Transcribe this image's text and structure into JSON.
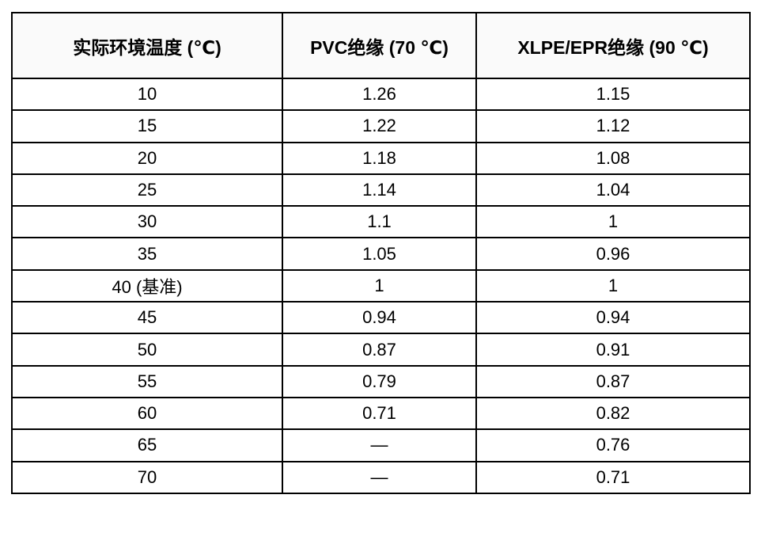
{
  "table": {
    "name": "ambient-temperature-correction-factors",
    "columns": [
      {
        "label": "实际环境温度 (℃)"
      },
      {
        "label": "PVC绝缘 (70 ℃)"
      },
      {
        "label": "XLPE/EPR绝缘 (90 ℃)"
      }
    ],
    "rows": [
      {
        "temperature": "10",
        "pvc": "1.26",
        "xlpe": "1.15"
      },
      {
        "temperature": "15",
        "pvc": "1.22",
        "xlpe": "1.12"
      },
      {
        "temperature": "20",
        "pvc": "1.18",
        "xlpe": "1.08"
      },
      {
        "temperature": "25",
        "pvc": "1.14",
        "xlpe": "1.04"
      },
      {
        "temperature": "30",
        "pvc": "1.1",
        "xlpe": "1"
      },
      {
        "temperature": "35",
        "pvc": "1.05",
        "xlpe": "0.96"
      },
      {
        "temperature": "40 (基准)",
        "pvc": "1",
        "xlpe": "1"
      },
      {
        "temperature": "45",
        "pvc": "0.94",
        "xlpe": "0.94"
      },
      {
        "temperature": "50",
        "pvc": "0.87",
        "xlpe": "0.91"
      },
      {
        "temperature": "55",
        "pvc": "0.79",
        "xlpe": "0.87"
      },
      {
        "temperature": "60",
        "pvc": "0.71",
        "xlpe": "0.82"
      },
      {
        "temperature": "65",
        "pvc": "—",
        "xlpe": "0.76"
      },
      {
        "temperature": "70",
        "pvc": "—",
        "xlpe": "0.71"
      }
    ],
    "colors": {
      "border": "#000000",
      "header_bg": "#fafafa",
      "body_bg": "#ffffff",
      "text": "#000000"
    }
  }
}
